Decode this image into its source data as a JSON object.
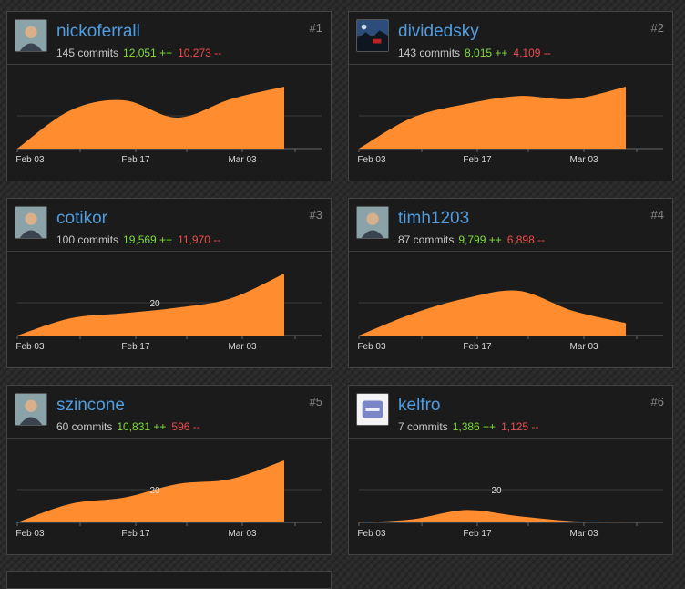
{
  "contributors": [
    {
      "username": "nickoferrall",
      "rank": "#1",
      "commits": "145 commits",
      "additions": "12,051 ++",
      "deletions": "10,273 --",
      "avatar_icon": "user-photo-avatar",
      "x_ticks": [
        "Feb 03",
        "Feb 17",
        "Mar 03"
      ],
      "y_label": "",
      "chart_data": {
        "type": "area",
        "x": [
          "Feb 03",
          "Feb 10",
          "Feb 17",
          "Feb 24",
          "Mar 03",
          "Mar 10"
        ],
        "values": [
          0,
          0.62,
          0.78,
          0.5,
          0.8,
          1.0
        ]
      }
    },
    {
      "username": "dividedsky",
      "rank": "#2",
      "commits": "143 commits",
      "additions": "8,015 ++",
      "deletions": "4,109 --",
      "avatar_icon": "landscape-photo-avatar",
      "x_ticks": [
        "Feb 03",
        "Feb 17",
        "Mar 03"
      ],
      "y_label": "",
      "chart_data": {
        "type": "area",
        "x": [
          "Feb 03",
          "Feb 10",
          "Feb 17",
          "Feb 24",
          "Mar 03",
          "Mar 10"
        ],
        "values": [
          0,
          0.5,
          0.72,
          0.85,
          0.8,
          1.0
        ]
      }
    },
    {
      "username": "cotikor",
      "rank": "#3",
      "commits": "100 commits",
      "additions": "19,569 ++",
      "deletions": "11,970 --",
      "avatar_icon": "user-photo-avatar",
      "x_ticks": [
        "Feb 03",
        "Feb 17",
        "Mar 03"
      ],
      "y_label": "20",
      "chart_data": {
        "type": "area",
        "x": [
          "Feb 03",
          "Feb 10",
          "Feb 17",
          "Feb 24",
          "Mar 03",
          "Mar 10"
        ],
        "values": [
          0,
          0.28,
          0.36,
          0.45,
          0.6,
          1.0
        ]
      }
    },
    {
      "username": "timh1203",
      "rank": "#4",
      "commits": "87 commits",
      "additions": "9,799 ++",
      "deletions": "6,898 --",
      "avatar_icon": "user-photo-avatar",
      "x_ticks": [
        "Feb 03",
        "Feb 17",
        "Mar 03"
      ],
      "y_label": "",
      "chart_data": {
        "type": "area",
        "x": [
          "Feb 03",
          "Feb 10",
          "Feb 17",
          "Feb 24",
          "Mar 03",
          "Mar 10"
        ],
        "values": [
          0,
          0.35,
          0.6,
          0.72,
          0.4,
          0.2
        ]
      }
    },
    {
      "username": "szincone",
      "rank": "#5",
      "commits": "60 commits",
      "additions": "10,831 ++",
      "deletions": "596 --",
      "avatar_icon": "user-photo-avatar",
      "x_ticks": [
        "Feb 03",
        "Feb 17",
        "Mar 03"
      ],
      "y_label": "20",
      "chart_data": {
        "type": "area",
        "x": [
          "Feb 03",
          "Feb 10",
          "Feb 17",
          "Feb 24",
          "Mar 03",
          "Mar 10"
        ],
        "values": [
          0,
          0.3,
          0.4,
          0.62,
          0.7,
          1.0
        ]
      }
    },
    {
      "username": "kelfro",
      "rank": "#6",
      "commits": "7 commits",
      "additions": "1,386 ++",
      "deletions": "1,125 --",
      "avatar_icon": "default-identicon-avatar",
      "x_ticks": [
        "Feb 03",
        "Feb 17",
        "Mar 03"
      ],
      "y_label": "20",
      "chart_data": {
        "type": "area",
        "x": [
          "Feb 03",
          "Feb 10",
          "Feb 17",
          "Feb 24",
          "Mar 03",
          "Mar 10"
        ],
        "values": [
          0,
          0.05,
          0.2,
          0.1,
          0.02,
          0
        ]
      }
    }
  ]
}
